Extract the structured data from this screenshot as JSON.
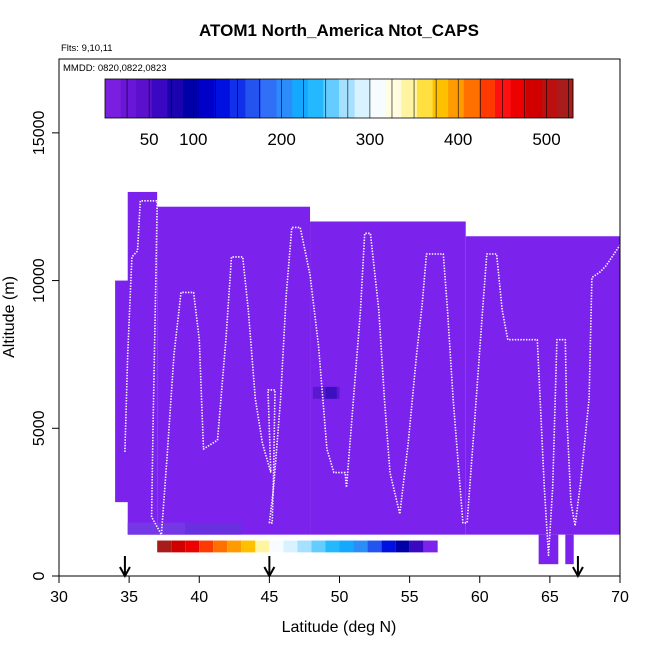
{
  "chart_data": {
    "type": "heatmap",
    "title": "ATOM1 North_America Ntot_CAPS",
    "flights_label": "Flts: 9,10,11",
    "dates_label": "MMDD: 0820,0822,0823",
    "xlabel": "Latitude (deg N)",
    "ylabel": "Altitude (m)",
    "xlim": [
      30,
      70
    ],
    "ylim": [
      0,
      17500
    ],
    "x_ticks": [
      30,
      35,
      40,
      45,
      50,
      55,
      60,
      65,
      70
    ],
    "y_ticks": [
      0,
      5000,
      10000,
      15000
    ],
    "colorbar": {
      "tick_values": [
        50,
        100,
        200,
        300,
        400,
        500
      ],
      "value_range": [
        0,
        530
      ],
      "colors": [
        "#7a1fe0",
        "#6a16d8",
        "#5a10cc",
        "#3a08c0",
        "#1a04b0",
        "#0000a8",
        "#0000c8",
        "#0010e0",
        "#1030ea",
        "#2454f0",
        "#3070f6",
        "#2c8cfa",
        "#14a8ff",
        "#24b8ff",
        "#64ccff",
        "#a6e0ff",
        "#d8f2ff",
        "#f6fcff",
        "#fffce0",
        "#fff4a0",
        "#ffe040",
        "#ffc000",
        "#ff9a00",
        "#ff7000",
        "#ff3a00",
        "#ff1010",
        "#ec0000",
        "#d00000",
        "#bc1010",
        "#a81c1c"
      ]
    },
    "arrows_lat": [
      34.7,
      45.0,
      67.0
    ],
    "background_fill": "#7b22ec",
    "fill_blocks": [
      {
        "lat": [
          34,
          35
        ],
        "alt": [
          2500,
          10000
        ]
      },
      {
        "lat": [
          34.9,
          37.0
        ],
        "alt": [
          1400,
          13000
        ]
      },
      {
        "lat": [
          37.0,
          47.9
        ],
        "alt": [
          1400,
          12500
        ]
      },
      {
        "lat": [
          47.9,
          59.0
        ],
        "alt": [
          1400,
          12000
        ]
      },
      {
        "lat": [
          59.0,
          70.0
        ],
        "alt": [
          1400,
          11500
        ]
      },
      {
        "lat": [
          67.0,
          70.0
        ],
        "alt": [
          10000,
          10500
        ]
      },
      {
        "lat": [
          64.2,
          65.6
        ],
        "alt": [
          400,
          1400
        ]
      },
      {
        "lat": [
          66.1,
          66.7
        ],
        "alt": [
          400,
          1400
        ]
      },
      {
        "lat": [
          69.0,
          70.0
        ],
        "alt": [
          6000,
          10500
        ]
      }
    ],
    "colored_cells": [
      {
        "lat": [
          34.9,
          37.0
        ],
        "alt": [
          1400,
          1800
        ],
        "color": "#7438e6"
      },
      {
        "lat": [
          37.0,
          39.0
        ],
        "alt": [
          1400,
          1800
        ],
        "color": "#7438e6"
      },
      {
        "lat": [
          39.0,
          43.0
        ],
        "alt": [
          1400,
          1800
        ],
        "color": "#6a30e0"
      },
      {
        "lat": [
          48.1,
          50.0
        ],
        "alt": [
          6000,
          6400
        ],
        "color": "#5a18d0"
      },
      {
        "lat": [
          49.0,
          49.8
        ],
        "alt": [
          6000,
          6400
        ],
        "color": "#3a10c0"
      }
    ],
    "bottom_strip": {
      "alt": [
        800,
        1200
      ],
      "cells": [
        {
          "lat": [
            37.0,
            38.0
          ],
          "color": "#a81c1c"
        },
        {
          "lat": [
            38.0,
            39.0
          ],
          "color": "#d00000"
        },
        {
          "lat": [
            39.0,
            40.0
          ],
          "color": "#ec0000"
        },
        {
          "lat": [
            40.0,
            41.0
          ],
          "color": "#ff3a00"
        },
        {
          "lat": [
            41.0,
            42.0
          ],
          "color": "#ff7000"
        },
        {
          "lat": [
            42.0,
            43.0
          ],
          "color": "#ff9a00"
        },
        {
          "lat": [
            43.0,
            44.0
          ],
          "color": "#ffc000"
        },
        {
          "lat": [
            44.0,
            45.0
          ],
          "color": "#fff4a0"
        },
        {
          "lat": [
            45.0,
            46.0
          ],
          "color": "#f6fcff"
        },
        {
          "lat": [
            46.0,
            47.0
          ],
          "color": "#d8f2ff"
        },
        {
          "lat": [
            47.0,
            48.0
          ],
          "color": "#a6e0ff"
        },
        {
          "lat": [
            48.0,
            49.0
          ],
          "color": "#64ccff"
        },
        {
          "lat": [
            49.0,
            50.0
          ],
          "color": "#24b8ff"
        },
        {
          "lat": [
            50.0,
            51.0
          ],
          "color": "#14a8ff"
        },
        {
          "lat": [
            51.0,
            52.0
          ],
          "color": "#2c8cfa"
        },
        {
          "lat": [
            52.0,
            53.0
          ],
          "color": "#2454f0"
        },
        {
          "lat": [
            53.0,
            54.0
          ],
          "color": "#0010e0"
        },
        {
          "lat": [
            54.0,
            55.0
          ],
          "color": "#0000a8"
        },
        {
          "lat": [
            55.0,
            56.0
          ],
          "color": "#3a08c0"
        },
        {
          "lat": [
            56.0,
            57.0
          ],
          "color": "#7b22ec"
        }
      ]
    },
    "flight_track": [
      [
        34.7,
        4200
      ],
      [
        34.9,
        7500
      ],
      [
        35.2,
        10800
      ],
      [
        35.6,
        11000
      ],
      [
        35.8,
        12700
      ],
      [
        37.0,
        12700
      ],
      [
        36.9,
        10000
      ],
      [
        36.7,
        5000
      ],
      [
        36.6,
        2000
      ],
      [
        37.3,
        1400
      ],
      [
        37.7,
        4000
      ],
      [
        38.2,
        7500
      ],
      [
        38.7,
        9600
      ],
      [
        39.6,
        9600
      ],
      [
        40.0,
        8000
      ],
      [
        40.2,
        5500
      ],
      [
        40.3,
        4300
      ],
      [
        41.3,
        4600
      ],
      [
        41.9,
        8000
      ],
      [
        42.3,
        10800
      ],
      [
        43.1,
        10800
      ],
      [
        43.5,
        9000
      ],
      [
        44.0,
        6000
      ],
      [
        44.5,
        4500
      ],
      [
        45.1,
        3500
      ],
      [
        44.9,
        6300
      ],
      [
        45.4,
        6300
      ],
      [
        45.3,
        3500
      ],
      [
        45.2,
        1800
      ],
      [
        45.0,
        1800
      ],
      [
        45.3,
        3000
      ],
      [
        45.8,
        6000
      ],
      [
        46.2,
        9500
      ],
      [
        46.6,
        11800
      ],
      [
        47.2,
        11800
      ],
      [
        47.9,
        10200
      ],
      [
        48.5,
        7800
      ],
      [
        49.1,
        4300
      ],
      [
        49.6,
        3500
      ],
      [
        50.4,
        3500
      ],
      [
        50.5,
        3000
      ],
      [
        51.0,
        6000
      ],
      [
        51.5,
        9000
      ],
      [
        51.8,
        11600
      ],
      [
        52.2,
        11600
      ],
      [
        52.8,
        9000
      ],
      [
        53.2,
        6000
      ],
      [
        53.6,
        3500
      ],
      [
        54.3,
        2100
      ],
      [
        54.9,
        4500
      ],
      [
        55.5,
        7500
      ],
      [
        55.9,
        9200
      ],
      [
        56.2,
        10900
      ],
      [
        57.4,
        10900
      ],
      [
        57.7,
        9000
      ],
      [
        58.1,
        6000
      ],
      [
        58.6,
        3000
      ],
      [
        58.8,
        1800
      ],
      [
        59.1,
        1800
      ],
      [
        59.6,
        5000
      ],
      [
        60.2,
        9000
      ],
      [
        60.5,
        10900
      ],
      [
        61.2,
        10900
      ],
      [
        61.6,
        9000
      ],
      [
        62.0,
        8000
      ],
      [
        64.1,
        8000
      ],
      [
        64.3,
        6000
      ],
      [
        64.6,
        3000
      ],
      [
        64.9,
        700
      ],
      [
        65.2,
        3000
      ],
      [
        65.5,
        8000
      ],
      [
        66.1,
        8000
      ],
      [
        66.2,
        5500
      ],
      [
        66.5,
        2500
      ],
      [
        66.8,
        1700
      ],
      [
        67.2,
        3200
      ],
      [
        67.8,
        6000
      ],
      [
        68.0,
        10100
      ],
      [
        68.6,
        10300
      ],
      [
        69.0,
        10500
      ],
      [
        70.0,
        11200
      ]
    ]
  }
}
